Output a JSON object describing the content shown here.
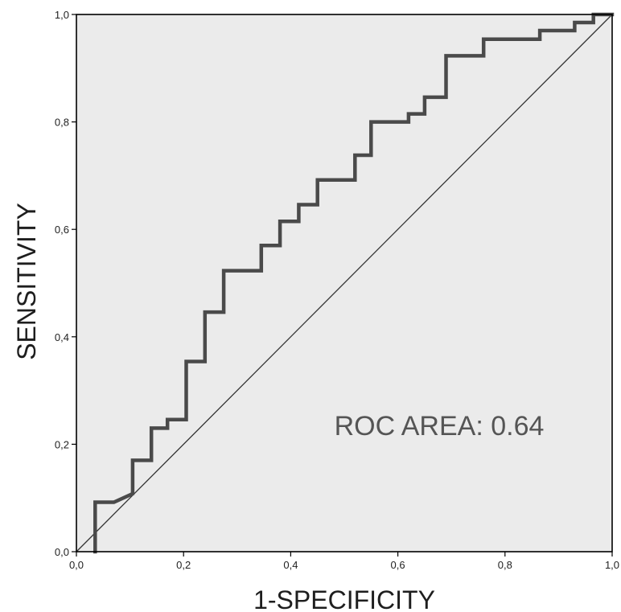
{
  "chart_data": {
    "type": "line",
    "title": "",
    "xlabel": "1-SPECIFICITY",
    "ylabel": "SENSITIVITY",
    "xlim": [
      0,
      1
    ],
    "ylim": [
      0,
      1
    ],
    "x_ticks": [
      "0,0",
      "0,2",
      "0,4",
      "0,6",
      "0,8",
      "1,0"
    ],
    "y_ticks": [
      "0,0",
      "0,2",
      "0,4",
      "0,6",
      "0,8",
      "1,0"
    ],
    "grid": false,
    "legend": "none",
    "annotation": "ROC AREA: 0.64",
    "colors": {
      "plot_background": "#ebebeb",
      "roc_curve": "#4a4a4a",
      "reference_line": "#333333",
      "frame": "#000000"
    },
    "series": [
      {
        "style": "step",
        "x": [
          0.035,
          0.035,
          0.07,
          0.105,
          0.105,
          0.14,
          0.14,
          0.17,
          0.17,
          0.205,
          0.205,
          0.24,
          0.24,
          0.275,
          0.275,
          0.345,
          0.345,
          0.38,
          0.38,
          0.415,
          0.415,
          0.45,
          0.45,
          0.52,
          0.52,
          0.55,
          0.55,
          0.62,
          0.62,
          0.65,
          0.65,
          0.69,
          0.69,
          0.76,
          0.76,
          0.865,
          0.865,
          0.93,
          0.93,
          0.965,
          0.965,
          1.0
        ],
        "y": [
          0.0,
          0.092,
          0.092,
          0.108,
          0.17,
          0.17,
          0.23,
          0.23,
          0.246,
          0.246,
          0.354,
          0.354,
          0.446,
          0.446,
          0.523,
          0.523,
          0.57,
          0.57,
          0.615,
          0.615,
          0.646,
          0.646,
          0.692,
          0.692,
          0.738,
          0.738,
          0.8,
          0.8,
          0.815,
          0.815,
          0.846,
          0.846,
          0.923,
          0.923,
          0.954,
          0.954,
          0.97,
          0.97,
          0.985,
          0.985,
          1.0,
          1.0
        ]
      },
      {
        "style": "reference-diagonal",
        "x": [
          0,
          1
        ],
        "y": [
          0,
          1
        ]
      }
    ]
  }
}
